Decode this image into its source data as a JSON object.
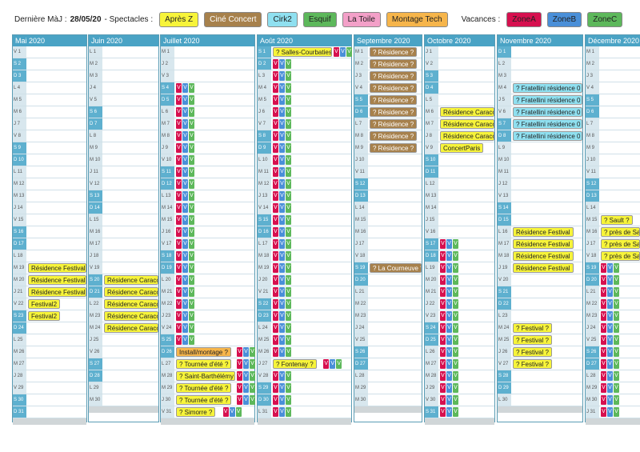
{
  "legend": {
    "updated_label": "Dernière MàJ :",
    "updated_date": "28/05/20",
    "spectacles_label": "- Spectacles :",
    "spectacles": [
      {
        "label": "Après Z",
        "color": "#f7f43a"
      },
      {
        "label": "Ciné Concert",
        "color": "#a7814c"
      },
      {
        "label": "Cirk2",
        "color": "#8fe0f0"
      },
      {
        "label": "Esquif",
        "color": "#5db85b"
      },
      {
        "label": "La Toile",
        "color": "#f3a0c8"
      },
      {
        "label": "Montage Tech",
        "color": "#f6b54b"
      }
    ],
    "vacances_label": "Vacances :",
    "zones": [
      {
        "label": "ZoneA",
        "color": "#d6104f"
      },
      {
        "label": "ZoneB",
        "color": "#4a8fd8"
      },
      {
        "label": "ZoneC",
        "color": "#5db85b"
      }
    ]
  },
  "tag_letter": "V",
  "months": [
    {
      "name": "Mai 2020",
      "days": 31,
      "dow0": "V",
      "rows": [
        {
          "d": 19,
          "ev": "Résidence Festival2",
          "c": "y"
        },
        {
          "d": 20,
          "ev": "Résidence Festival2",
          "c": "y"
        },
        {
          "d": 21,
          "ev": "Résidence Festival2",
          "c": "y"
        },
        {
          "d": 22,
          "ev": "Festival2",
          "c": "y"
        },
        {
          "d": 23,
          "ev": "Festival2",
          "c": "y"
        }
      ]
    },
    {
      "name": "Juin 2020",
      "days": 30,
      "dow0": "L",
      "rows": [
        {
          "d": 20,
          "ev": "Résidence Caracol",
          "c": "y"
        },
        {
          "d": 21,
          "ev": "Résidence Caracol",
          "c": "y"
        },
        {
          "d": 22,
          "ev": "Résidence Caracol",
          "c": "y"
        },
        {
          "d": 23,
          "ev": "Résidence Caracol",
          "c": "y"
        },
        {
          "d": 24,
          "ev": "Résidence Caracol",
          "c": "y"
        }
      ]
    },
    {
      "name": "Juillet 2020",
      "days": 31,
      "dow0": "M",
      "hol_from": 4,
      "rows": [
        {
          "d": 26,
          "ev": "Install/montage ?",
          "c": "o"
        },
        {
          "d": 27,
          "ev": "? Tournée d'été ?",
          "c": "y"
        },
        {
          "d": 28,
          "ev": "? Saint-Barthélémy ?",
          "c": "y"
        },
        {
          "d": 29,
          "ev": "? Tournée d'été ?",
          "c": "y"
        },
        {
          "d": 30,
          "ev": "? Tournée d'été ?",
          "c": "y"
        },
        {
          "d": 31,
          "ev": "? Simorre ?",
          "c": "y"
        }
      ]
    },
    {
      "name": "Août 2020",
      "days": 31,
      "dow0": "S",
      "hol_from": 1,
      "rows": [
        {
          "d": 1,
          "ev": "? Salles-Courbaties ?",
          "c": "y"
        },
        {
          "d": 27,
          "ev": "? Fontenay ?",
          "c": "y"
        }
      ]
    },
    {
      "name": "Septembre 2020",
      "days": 30,
      "dow0": "M",
      "rows": [
        {
          "d": 1,
          "ev": "? Résidence ?",
          "c": "b"
        },
        {
          "d": 2,
          "ev": "? Résidence ?",
          "c": "b"
        },
        {
          "d": 3,
          "ev": "? Résidence ?",
          "c": "b"
        },
        {
          "d": 4,
          "ev": "? Résidence ?",
          "c": "b"
        },
        {
          "d": 5,
          "ev": "? Résidence ?",
          "c": "b"
        },
        {
          "d": 6,
          "ev": "? Résidence ?",
          "c": "b"
        },
        {
          "d": 7,
          "ev": "? Résidence ?",
          "c": "b"
        },
        {
          "d": 8,
          "ev": "? Résidence ?",
          "c": "b"
        },
        {
          "d": 9,
          "ev": "? Résidence ?",
          "c": "b"
        },
        {
          "d": 19,
          "ev": "? La Courneuve ?",
          "c": "b"
        }
      ]
    },
    {
      "name": "Octobre 2020",
      "days": 31,
      "dow0": "J",
      "hol_from": 17,
      "rows": [
        {
          "d": 6,
          "ev": "Résidence Caracol",
          "c": "y"
        },
        {
          "d": 7,
          "ev": "Résidence Caracol",
          "c": "y"
        },
        {
          "d": 8,
          "ev": "Résidence Caracol",
          "c": "y"
        },
        {
          "d": 9,
          "ev": "ConcertParis",
          "c": "y"
        }
      ]
    },
    {
      "name": "Novembre 2020",
      "days": 30,
      "dow0": "D",
      "rows": [
        {
          "d": 4,
          "ev": "? Fratellini résidence 0 ?",
          "c": "c"
        },
        {
          "d": 5,
          "ev": "? Fratellini résidence 0 ?",
          "c": "c"
        },
        {
          "d": 6,
          "ev": "? Fratellini résidence 0 ?",
          "c": "c"
        },
        {
          "d": 7,
          "ev": "? Fratellini résidence 0 ?",
          "c": "c"
        },
        {
          "d": 8,
          "ev": "? Fratellini résidence 0 ?",
          "c": "c"
        },
        {
          "d": 16,
          "ev": "Résidence Festival",
          "c": "y"
        },
        {
          "d": 17,
          "ev": "Résidence Festival",
          "c": "y"
        },
        {
          "d": 18,
          "ev": "Résidence Festival",
          "c": "y"
        },
        {
          "d": 19,
          "ev": "Résidence Festival",
          "c": "y"
        },
        {
          "d": 24,
          "ev": "? Festival ?",
          "c": "y"
        },
        {
          "d": 25,
          "ev": "? Festival ?",
          "c": "y"
        },
        {
          "d": 26,
          "ev": "? Festival ?",
          "c": "y"
        },
        {
          "d": 27,
          "ev": "? Festival ?",
          "c": "y"
        }
      ]
    },
    {
      "name": "Décembre 2020",
      "days": 31,
      "dow0": "M",
      "hol_from": 19,
      "rows": [
        {
          "d": 15,
          "ev": "? Sault ?",
          "c": "y"
        },
        {
          "d": 16,
          "ev": "? près de Sau",
          "c": "y"
        },
        {
          "d": 17,
          "ev": "? près de Sau",
          "c": "y"
        },
        {
          "d": 18,
          "ev": "? près de Sau",
          "c": "y"
        }
      ]
    }
  ]
}
